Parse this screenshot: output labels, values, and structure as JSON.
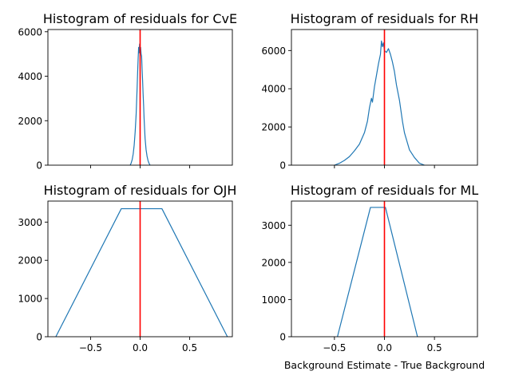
{
  "colors": {
    "series": "#1f77b4",
    "reference": "#ff0000",
    "axes": "#000000"
  },
  "chart_data": [
    {
      "type": "line",
      "title": "Histogram of residuals for CvE",
      "xlabel": "",
      "ylabel": "",
      "xlim": [
        -0.93,
        0.93
      ],
      "ylim": [
        0,
        6100
      ],
      "xticks": [
        -0.5,
        0,
        0.5
      ],
      "xtick_labels": [
        "",
        "",
        ""
      ],
      "yticks": [
        0,
        2000,
        4000,
        6000
      ],
      "ytick_labels": [
        "0",
        "2000",
        "4000",
        "6000"
      ],
      "reference_x": 0,
      "series": [
        {
          "x": [
            -0.1,
            -0.09,
            -0.08,
            -0.07,
            -0.06,
            -0.05,
            -0.04,
            -0.035,
            -0.03,
            -0.025,
            -0.02,
            -0.015,
            -0.01,
            -0.005,
            0,
            0.005,
            0.01,
            0.015,
            0.02,
            0.025,
            0.03,
            0.035,
            0.04,
            0.05,
            0.06,
            0.07,
            0.08,
            0.09,
            0.1
          ],
          "y": [
            0,
            100,
            250,
            500,
            900,
            1500,
            2300,
            2900,
            3500,
            4200,
            4800,
            5300,
            5050,
            5450,
            5150,
            5300,
            5000,
            4900,
            4300,
            3800,
            3200,
            2700,
            2100,
            1200,
            700,
            400,
            200,
            80,
            0
          ]
        }
      ]
    },
    {
      "type": "line",
      "title": "Histogram of residuals for RH",
      "xlabel": "",
      "ylabel": "",
      "xlim": [
        -0.93,
        0.93
      ],
      "ylim": [
        0,
        7100
      ],
      "xticks": [
        -0.5,
        0,
        0.5
      ],
      "xtick_labels": [
        "",
        "",
        ""
      ],
      "yticks": [
        0,
        2000,
        4000,
        6000
      ],
      "ytick_labels": [
        "0",
        "2000",
        "4000",
        "6000"
      ],
      "reference_x": 0,
      "series": [
        {
          "x": [
            -0.5,
            -0.45,
            -0.4,
            -0.35,
            -0.3,
            -0.25,
            -0.2,
            -0.17,
            -0.15,
            -0.13,
            -0.12,
            -0.1,
            -0.08,
            -0.06,
            -0.04,
            -0.03,
            -0.02,
            -0.01,
            0,
            0.02,
            0.04,
            0.06,
            0.08,
            0.1,
            0.12,
            0.15,
            0.18,
            0.2,
            0.25,
            0.3,
            0.35,
            0.4
          ],
          "y": [
            0,
            100,
            250,
            450,
            750,
            1100,
            1700,
            2300,
            3000,
            3500,
            3300,
            4100,
            4700,
            5300,
            5800,
            6500,
            6200,
            6400,
            6000,
            5900,
            6100,
            5800,
            5400,
            4900,
            4200,
            3400,
            2300,
            1700,
            800,
            400,
            100,
            0
          ]
        }
      ]
    },
    {
      "type": "line",
      "title": "Histogram of residuals for OJH",
      "xlabel": "",
      "ylabel": "",
      "xlim": [
        -0.93,
        0.93
      ],
      "ylim": [
        0,
        3550
      ],
      "xticks": [
        -0.5,
        0,
        0.5
      ],
      "xtick_labels": [
        "−0.5",
        "0.0",
        "0.5"
      ],
      "yticks": [
        0,
        1000,
        2000,
        3000
      ],
      "ytick_labels": [
        "0",
        "1000",
        "2000",
        "3000"
      ],
      "reference_x": 0,
      "series": [
        {
          "x": [
            -0.85,
            -0.19,
            0.22,
            0.88
          ],
          "y": [
            0,
            3350,
            3350,
            0
          ]
        }
      ]
    },
    {
      "type": "line",
      "title": "Histogram of residuals for ML",
      "xlabel": "Background Estimate - True Background",
      "ylabel": "",
      "xlim": [
        -0.93,
        0.93
      ],
      "ylim": [
        0,
        3650
      ],
      "xticks": [
        -0.5,
        0,
        0.5
      ],
      "xtick_labels": [
        "−0.5",
        "0.0",
        "0.5"
      ],
      "yticks": [
        0,
        1000,
        2000,
        3000
      ],
      "ytick_labels": [
        "0",
        "1000",
        "2000",
        "3000"
      ],
      "reference_x": 0,
      "series": [
        {
          "x": [
            -0.47,
            -0.14,
            0.01,
            0.33
          ],
          "y": [
            0,
            3480,
            3480,
            0
          ]
        }
      ]
    }
  ]
}
